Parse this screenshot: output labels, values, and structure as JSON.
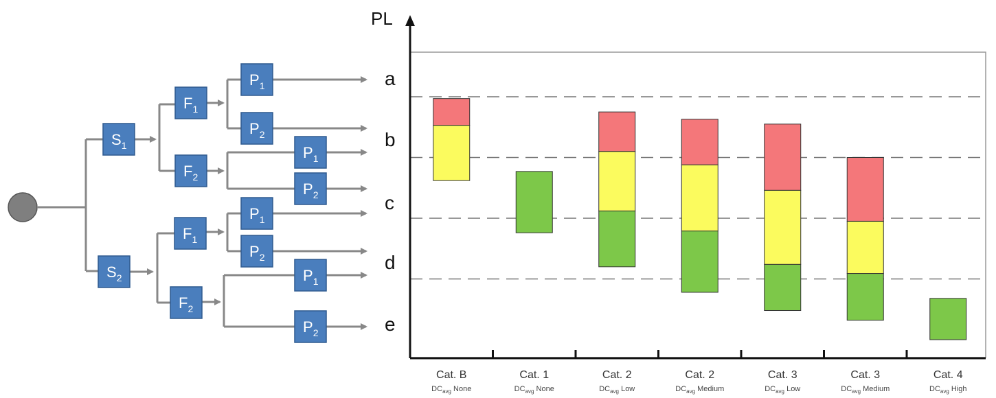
{
  "tree": {
    "nodes": {
      "S1": {
        "base": "S",
        "sub": "1"
      },
      "S2": {
        "base": "S",
        "sub": "2"
      },
      "F1": {
        "base": "F",
        "sub": "1"
      },
      "F2": {
        "base": "F",
        "sub": "2"
      },
      "P1": {
        "base": "P",
        "sub": "1"
      },
      "P2": {
        "base": "P",
        "sub": "2"
      }
    }
  },
  "levels": [
    "a",
    "b",
    "c",
    "d",
    "e"
  ],
  "colors": {
    "node_fill": "#4a7ebd",
    "line": "#888888",
    "root": "#7f7f7f",
    "high": "#f4777a",
    "medium": "#fbfb5e",
    "low": "#7dc849",
    "dash": "#777777"
  },
  "chart_data": {
    "type": "bar",
    "ylabel": "PL",
    "y_levels": [
      "e",
      "d",
      "c",
      "b",
      "a"
    ],
    "categories": [
      {
        "label": "Cat. B",
        "dc_main": "DC",
        "dc_sub": "avg",
        "dc_level": "None",
        "segments": [
          {
            "color": "medium",
            "from": 2.62,
            "to": 3.53
          },
          {
            "color": "high",
            "from": 3.53,
            "to": 3.97
          }
        ]
      },
      {
        "label": "Cat. 1",
        "dc_main": "DC",
        "dc_sub": "avg",
        "dc_level": "None",
        "segments": [
          {
            "color": "low",
            "from": 1.76,
            "to": 2.77
          }
        ]
      },
      {
        "label": "Cat. 2",
        "dc_main": "DC",
        "dc_sub": "avg",
        "dc_level": "Low",
        "segments": [
          {
            "color": "low",
            "from": 1.2,
            "to": 2.12
          },
          {
            "color": "medium",
            "from": 2.12,
            "to": 3.1
          },
          {
            "color": "high",
            "from": 3.1,
            "to": 3.75
          }
        ]
      },
      {
        "label": "Cat. 2",
        "dc_main": "DC",
        "dc_sub": "avg",
        "dc_level": "Medium",
        "segments": [
          {
            "color": "low",
            "from": 0.78,
            "to": 1.79
          },
          {
            "color": "medium",
            "from": 1.79,
            "to": 2.88
          },
          {
            "color": "high",
            "from": 2.88,
            "to": 3.63
          }
        ]
      },
      {
        "label": "Cat. 3",
        "dc_main": "DC",
        "dc_sub": "avg",
        "dc_level": "Low",
        "segments": [
          {
            "color": "low",
            "from": 0.48,
            "to": 1.24
          },
          {
            "color": "medium",
            "from": 1.24,
            "to": 2.46
          },
          {
            "color": "high",
            "from": 2.46,
            "to": 3.55
          }
        ]
      },
      {
        "label": "Cat. 3",
        "dc_main": "DC",
        "dc_sub": "avg",
        "dc_level": "Medium",
        "segments": [
          {
            "color": "low",
            "from": 0.32,
            "to": 1.09
          },
          {
            "color": "medium",
            "from": 1.09,
            "to": 1.95
          },
          {
            "color": "high",
            "from": 1.95,
            "to": 3.0
          }
        ]
      },
      {
        "label": "Cat. 4",
        "dc_main": "DC",
        "dc_sub": "avg",
        "dc_level": "High",
        "segments": [
          {
            "color": "low",
            "from": 0.0,
            "to": 0.68
          }
        ]
      }
    ],
    "grid_dashed_at": [
      1.0,
      2.0,
      3.0,
      4.0
    ],
    "grid": true
  }
}
